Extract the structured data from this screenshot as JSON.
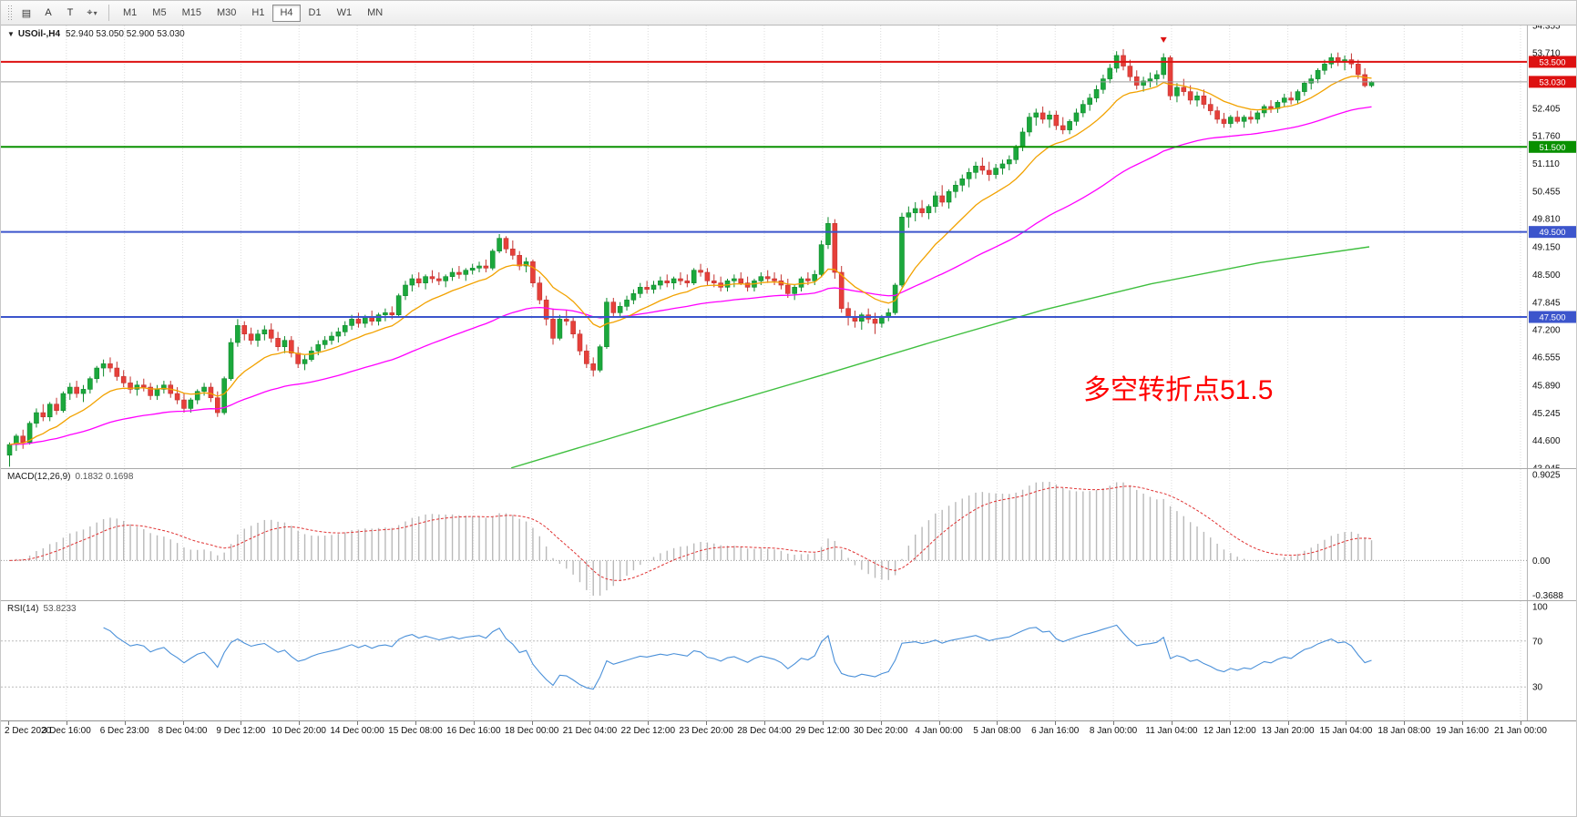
{
  "toolbar": {
    "icons": [
      {
        "name": "chart-layout-icon",
        "glyph": "▤"
      },
      {
        "name": "annotation-a-icon",
        "glyph": "A"
      },
      {
        "name": "text-tool-icon",
        "glyph": "T"
      },
      {
        "name": "crosshair-tool-icon",
        "glyph": "⌖"
      }
    ],
    "dropdown_caret": "▾",
    "timeframes": [
      "M1",
      "M5",
      "M15",
      "M30",
      "H1",
      "H4",
      "D1",
      "W1",
      "MN"
    ],
    "active_timeframe": "H4"
  },
  "chart": {
    "collapse_toggle": "▼",
    "symbol": "USOil-,H4",
    "ohlc_text": "52.940 53.050 52.900 53.030",
    "annotation": {
      "text": "多空转折点51.5",
      "color": "#ff0000"
    }
  },
  "chart_data": {
    "type": "candlestick",
    "title": "USOil-,H4",
    "price_axis": {
      "min": 43.945,
      "max": 54.355,
      "ticks": [
        "54.355",
        "53.710",
        "53.055",
        "52.405",
        "51.760",
        "51.110",
        "50.455",
        "49.810",
        "49.150",
        "48.500",
        "47.845",
        "47.200",
        "46.555",
        "45.890",
        "45.245",
        "44.600",
        "43.945"
      ]
    },
    "colors": {
      "up": "#1ba83c",
      "up_stroke": "#0f8a2d",
      "down": "#e6403a",
      "down_stroke": "#c33330"
    },
    "horizontal_lines": [
      {
        "value": 53.5,
        "label": "53.500",
        "color": "#dd1111"
      },
      {
        "value": 51.5,
        "label": "51.500",
        "color": "#089000"
      },
      {
        "value": 49.5,
        "label": "49.500",
        "color": "#3c55cc"
      },
      {
        "value": 47.5,
        "label": "47.500",
        "color": "#3c55cc"
      }
    ],
    "current_price": {
      "value": 53.03,
      "label": "53.030",
      "line_color": "#9b9b9b",
      "badge_color": "#dd1111"
    },
    "moving_averages": {
      "fast": {
        "period": 13,
        "color": "#f2a200"
      },
      "mid": {
        "period": 50,
        "color": "#ff00ff"
      },
      "long": {
        "color": "#3fbf3f",
        "points": [
          [
            0.37,
            43.95
          ],
          [
            0.44,
            44.62
          ],
          [
            0.52,
            45.4
          ],
          [
            0.6,
            46.15
          ],
          [
            0.68,
            46.92
          ],
          [
            0.76,
            47.66
          ],
          [
            0.84,
            48.28
          ],
          [
            0.92,
            48.78
          ],
          [
            1.0,
            49.15
          ]
        ]
      }
    },
    "sell_arrow": {
      "candle_index": 172,
      "price": 53.95,
      "color": "#dd1111"
    },
    "candles": [
      [
        44.25,
        44.55,
        43.98,
        44.5
      ],
      [
        44.5,
        44.75,
        44.35,
        44.7
      ],
      [
        44.7,
        44.85,
        44.4,
        44.55
      ],
      [
        44.55,
        45.05,
        44.5,
        45.0
      ],
      [
        45.0,
        45.35,
        44.9,
        45.25
      ],
      [
        45.25,
        45.45,
        45.05,
        45.15
      ],
      [
        45.15,
        45.5,
        45.05,
        45.45
      ],
      [
        45.45,
        45.6,
        45.2,
        45.3
      ],
      [
        45.3,
        45.75,
        45.25,
        45.7
      ],
      [
        45.7,
        45.95,
        45.55,
        45.85
      ],
      [
        45.85,
        46.0,
        45.6,
        45.7
      ],
      [
        45.7,
        45.9,
        45.5,
        45.8
      ],
      [
        45.8,
        46.1,
        45.7,
        46.05
      ],
      [
        46.05,
        46.35,
        45.95,
        46.3
      ],
      [
        46.3,
        46.5,
        46.1,
        46.4
      ],
      [
        46.4,
        46.55,
        46.2,
        46.3
      ],
      [
        46.3,
        46.45,
        46.0,
        46.1
      ],
      [
        46.1,
        46.25,
        45.85,
        45.95
      ],
      [
        45.95,
        46.1,
        45.7,
        45.8
      ],
      [
        45.8,
        46.0,
        45.65,
        45.9
      ],
      [
        45.9,
        46.05,
        45.75,
        45.85
      ],
      [
        45.85,
        45.95,
        45.55,
        45.65
      ],
      [
        45.65,
        45.9,
        45.55,
        45.8
      ],
      [
        45.8,
        46.0,
        45.7,
        45.9
      ],
      [
        45.9,
        46.0,
        45.6,
        45.7
      ],
      [
        45.7,
        45.85,
        45.45,
        45.55
      ],
      [
        45.55,
        45.7,
        45.25,
        45.35
      ],
      [
        45.35,
        45.6,
        45.25,
        45.55
      ],
      [
        45.55,
        45.8,
        45.45,
        45.75
      ],
      [
        45.75,
        45.95,
        45.65,
        45.85
      ],
      [
        45.85,
        45.95,
        45.5,
        45.6
      ],
      [
        45.6,
        45.75,
        45.15,
        45.25
      ],
      [
        45.25,
        46.1,
        45.2,
        46.05
      ],
      [
        46.05,
        47.0,
        46.0,
        46.9
      ],
      [
        46.9,
        47.45,
        46.8,
        47.3
      ],
      [
        47.3,
        47.4,
        46.95,
        47.1
      ],
      [
        47.1,
        47.25,
        46.85,
        46.95
      ],
      [
        46.95,
        47.2,
        46.8,
        47.1
      ],
      [
        47.1,
        47.3,
        46.95,
        47.2
      ],
      [
        47.2,
        47.35,
        46.9,
        47.0
      ],
      [
        47.0,
        47.15,
        46.7,
        46.8
      ],
      [
        46.8,
        47.05,
        46.65,
        46.95
      ],
      [
        46.95,
        47.05,
        46.55,
        46.65
      ],
      [
        46.65,
        46.8,
        46.3,
        46.4
      ],
      [
        46.4,
        46.6,
        46.25,
        46.5
      ],
      [
        46.5,
        46.8,
        46.45,
        46.7
      ],
      [
        46.7,
        46.95,
        46.6,
        46.85
      ],
      [
        46.85,
        47.05,
        46.75,
        46.95
      ],
      [
        46.95,
        47.15,
        46.85,
        47.05
      ],
      [
        47.05,
        47.25,
        46.9,
        47.15
      ],
      [
        47.15,
        47.4,
        47.05,
        47.3
      ],
      [
        47.3,
        47.55,
        47.2,
        47.45
      ],
      [
        47.45,
        47.6,
        47.25,
        47.35
      ],
      [
        47.35,
        47.55,
        47.25,
        47.5
      ],
      [
        47.5,
        47.65,
        47.3,
        47.4
      ],
      [
        47.4,
        47.6,
        47.3,
        47.55
      ],
      [
        47.55,
        47.7,
        47.4,
        47.6
      ],
      [
        47.6,
        47.75,
        47.45,
        47.55
      ],
      [
        47.55,
        48.05,
        47.5,
        48.0
      ],
      [
        48.0,
        48.35,
        47.9,
        48.25
      ],
      [
        48.25,
        48.5,
        48.1,
        48.4
      ],
      [
        48.4,
        48.55,
        48.2,
        48.3
      ],
      [
        48.3,
        48.5,
        48.15,
        48.45
      ],
      [
        48.45,
        48.6,
        48.3,
        48.4
      ],
      [
        48.4,
        48.55,
        48.25,
        48.35
      ],
      [
        48.35,
        48.5,
        48.2,
        48.45
      ],
      [
        48.45,
        48.65,
        48.35,
        48.55
      ],
      [
        48.55,
        48.7,
        48.4,
        48.5
      ],
      [
        48.5,
        48.65,
        48.35,
        48.6
      ],
      [
        48.6,
        48.75,
        48.5,
        48.65
      ],
      [
        48.65,
        48.8,
        48.55,
        48.7
      ],
      [
        48.7,
        48.85,
        48.55,
        48.65
      ],
      [
        48.65,
        49.1,
        48.6,
        49.05
      ],
      [
        49.05,
        49.45,
        49.0,
        49.35
      ],
      [
        49.35,
        49.4,
        49.0,
        49.1
      ],
      [
        49.1,
        49.3,
        48.85,
        48.95
      ],
      [
        48.95,
        49.05,
        48.6,
        48.7
      ],
      [
        48.7,
        48.9,
        48.55,
        48.8
      ],
      [
        48.8,
        48.85,
        48.2,
        48.3
      ],
      [
        48.3,
        48.45,
        47.8,
        47.9
      ],
      [
        47.9,
        48.0,
        47.3,
        47.45
      ],
      [
        47.45,
        47.7,
        46.85,
        47.0
      ],
      [
        47.0,
        47.55,
        46.95,
        47.45
      ],
      [
        47.45,
        47.65,
        47.3,
        47.4
      ],
      [
        47.4,
        47.5,
        47.0,
        47.1
      ],
      [
        47.1,
        47.2,
        46.6,
        46.7
      ],
      [
        46.7,
        46.85,
        46.3,
        46.4
      ],
      [
        46.4,
        46.55,
        46.1,
        46.25
      ],
      [
        46.25,
        46.85,
        46.2,
        46.8
      ],
      [
        46.8,
        47.95,
        46.75,
        47.85
      ],
      [
        47.85,
        47.95,
        47.5,
        47.6
      ],
      [
        47.6,
        47.85,
        47.5,
        47.75
      ],
      [
        47.75,
        48.0,
        47.65,
        47.9
      ],
      [
        47.9,
        48.15,
        47.8,
        48.05
      ],
      [
        48.05,
        48.3,
        47.95,
        48.2
      ],
      [
        48.2,
        48.35,
        48.05,
        48.15
      ],
      [
        48.15,
        48.35,
        48.05,
        48.25
      ],
      [
        48.25,
        48.45,
        48.15,
        48.35
      ],
      [
        48.35,
        48.5,
        48.2,
        48.3
      ],
      [
        48.3,
        48.45,
        48.15,
        48.4
      ],
      [
        48.4,
        48.55,
        48.25,
        48.35
      ],
      [
        48.35,
        48.5,
        48.2,
        48.3
      ],
      [
        48.3,
        48.65,
        48.25,
        48.6
      ],
      [
        48.6,
        48.75,
        48.45,
        48.55
      ],
      [
        48.55,
        48.65,
        48.25,
        48.35
      ],
      [
        48.35,
        48.5,
        48.2,
        48.3
      ],
      [
        48.3,
        48.45,
        48.1,
        48.2
      ],
      [
        48.2,
        48.4,
        48.1,
        48.35
      ],
      [
        48.35,
        48.5,
        48.2,
        48.4
      ],
      [
        48.4,
        48.55,
        48.25,
        48.3
      ],
      [
        48.3,
        48.45,
        48.1,
        48.2
      ],
      [
        48.2,
        48.4,
        48.1,
        48.35
      ],
      [
        48.35,
        48.55,
        48.25,
        48.45
      ],
      [
        48.45,
        48.6,
        48.3,
        48.4
      ],
      [
        48.4,
        48.55,
        48.25,
        48.35
      ],
      [
        48.35,
        48.5,
        48.15,
        48.25
      ],
      [
        48.25,
        48.4,
        47.95,
        48.05
      ],
      [
        48.05,
        48.25,
        47.9,
        48.2
      ],
      [
        48.2,
        48.45,
        48.1,
        48.4
      ],
      [
        48.4,
        48.55,
        48.25,
        48.35
      ],
      [
        48.35,
        48.6,
        48.25,
        48.5
      ],
      [
        48.5,
        49.3,
        48.45,
        49.2
      ],
      [
        49.2,
        49.85,
        49.1,
        49.7
      ],
      [
        49.7,
        49.8,
        48.4,
        48.55
      ],
      [
        48.55,
        48.7,
        47.6,
        47.7
      ],
      [
        47.7,
        47.85,
        47.3,
        47.5
      ],
      [
        47.5,
        47.65,
        47.25,
        47.4
      ],
      [
        47.4,
        47.6,
        47.2,
        47.55
      ],
      [
        47.55,
        47.7,
        47.35,
        47.45
      ],
      [
        47.45,
        47.6,
        47.1,
        47.35
      ],
      [
        47.35,
        47.55,
        47.25,
        47.5
      ],
      [
        47.5,
        47.7,
        47.4,
        47.6
      ],
      [
        47.6,
        48.3,
        47.55,
        48.25
      ],
      [
        48.25,
        49.95,
        48.2,
        49.85
      ],
      [
        49.85,
        50.1,
        49.6,
        49.95
      ],
      [
        49.95,
        50.2,
        49.75,
        50.05
      ],
      [
        50.05,
        50.25,
        49.85,
        49.95
      ],
      [
        49.95,
        50.15,
        49.8,
        50.1
      ],
      [
        50.1,
        50.45,
        49.95,
        50.35
      ],
      [
        50.35,
        50.6,
        50.1,
        50.2
      ],
      [
        50.2,
        50.5,
        50.05,
        50.45
      ],
      [
        50.45,
        50.7,
        50.3,
        50.6
      ],
      [
        50.6,
        50.85,
        50.45,
        50.75
      ],
      [
        50.75,
        51.0,
        50.55,
        50.9
      ],
      [
        50.9,
        51.15,
        50.75,
        51.05
      ],
      [
        51.05,
        51.25,
        50.85,
        50.95
      ],
      [
        50.95,
        51.15,
        50.7,
        50.85
      ],
      [
        50.85,
        51.1,
        50.75,
        51.0
      ],
      [
        51.0,
        51.2,
        50.85,
        51.1
      ],
      [
        51.1,
        51.3,
        50.95,
        51.2
      ],
      [
        51.2,
        51.55,
        51.1,
        51.5
      ],
      [
        51.5,
        51.95,
        51.4,
        51.85
      ],
      [
        51.85,
        52.3,
        51.75,
        52.2
      ],
      [
        52.2,
        52.4,
        52.0,
        52.3
      ],
      [
        52.3,
        52.45,
        52.05,
        52.15
      ],
      [
        52.15,
        52.35,
        51.95,
        52.25
      ],
      [
        52.25,
        52.35,
        51.9,
        52.0
      ],
      [
        52.0,
        52.2,
        51.8,
        51.9
      ],
      [
        51.9,
        52.15,
        51.8,
        52.1
      ],
      [
        52.1,
        52.4,
        52.0,
        52.3
      ],
      [
        52.3,
        52.6,
        52.2,
        52.5
      ],
      [
        52.5,
        52.75,
        52.35,
        52.65
      ],
      [
        52.65,
        52.95,
        52.55,
        52.85
      ],
      [
        52.85,
        53.2,
        52.75,
        53.1
      ],
      [
        53.1,
        53.45,
        53.0,
        53.35
      ],
      [
        53.35,
        53.75,
        53.25,
        53.65
      ],
      [
        53.65,
        53.8,
        53.3,
        53.4
      ],
      [
        53.4,
        53.55,
        53.05,
        53.15
      ],
      [
        53.15,
        53.3,
        52.85,
        52.95
      ],
      [
        52.95,
        53.15,
        52.8,
        53.05
      ],
      [
        53.05,
        53.25,
        52.9,
        53.1
      ],
      [
        53.1,
        53.3,
        52.95,
        53.2
      ],
      [
        53.2,
        53.7,
        53.1,
        53.6
      ],
      [
        53.6,
        53.65,
        52.6,
        52.7
      ],
      [
        52.7,
        53.0,
        52.55,
        52.9
      ],
      [
        52.9,
        53.1,
        52.7,
        52.8
      ],
      [
        52.8,
        52.95,
        52.5,
        52.6
      ],
      [
        52.6,
        52.8,
        52.45,
        52.7
      ],
      [
        52.7,
        52.85,
        52.4,
        52.5
      ],
      [
        52.5,
        52.65,
        52.25,
        52.35
      ],
      [
        52.35,
        52.45,
        52.05,
        52.15
      ],
      [
        52.15,
        52.3,
        51.95,
        52.05
      ],
      [
        52.05,
        52.25,
        51.95,
        52.2
      ],
      [
        52.2,
        52.35,
        52.05,
        52.1
      ],
      [
        52.1,
        52.25,
        51.95,
        52.2
      ],
      [
        52.2,
        52.35,
        52.05,
        52.15
      ],
      [
        52.15,
        52.35,
        52.05,
        52.3
      ],
      [
        52.3,
        52.5,
        52.2,
        52.45
      ],
      [
        52.45,
        52.6,
        52.3,
        52.4
      ],
      [
        52.4,
        52.6,
        52.3,
        52.55
      ],
      [
        52.55,
        52.75,
        52.45,
        52.65
      ],
      [
        52.65,
        52.8,
        52.5,
        52.6
      ],
      [
        52.6,
        52.85,
        52.5,
        52.8
      ],
      [
        52.8,
        53.05,
        52.7,
        53.0
      ],
      [
        53.0,
        53.2,
        52.85,
        53.1
      ],
      [
        53.1,
        53.35,
        53.0,
        53.3
      ],
      [
        53.3,
        53.55,
        53.2,
        53.45
      ],
      [
        53.45,
        53.7,
        53.35,
        53.6
      ],
      [
        53.6,
        53.72,
        53.4,
        53.5
      ],
      [
        53.5,
        53.65,
        53.3,
        53.55
      ],
      [
        53.55,
        53.7,
        53.35,
        53.45
      ],
      [
        53.45,
        53.55,
        53.1,
        53.2
      ],
      [
        53.2,
        53.35,
        52.9,
        52.94
      ],
      [
        52.94,
        53.05,
        52.9,
        53.03
      ]
    ]
  },
  "macd": {
    "name": "MACD(12,26,9)",
    "values": "0.1832 0.1698",
    "fast": 12,
    "slow": 26,
    "signal": 9,
    "axis_max": 0.9025,
    "axis_min": -0.3688,
    "axis_ticks": [
      "0.9025",
      "0.00",
      "-0.3688"
    ],
    "histogram_color": "#b9b9b9",
    "signal_color": "#e03232"
  },
  "rsi": {
    "name": "RSI(14)",
    "value": "53.8233",
    "period": 14,
    "levels": [
      100,
      70,
      30
    ],
    "line_color": "#4a90d9"
  },
  "time_axis": {
    "labels": [
      "2 Dec 2020",
      "3 Dec 16:00",
      "6 Dec 23:00",
      "8 Dec 04:00",
      "9 Dec 12:00",
      "10 Dec 20:00",
      "14 Dec 00:00",
      "15 Dec 08:00",
      "16 Dec 16:00",
      "18 Dec 00:00",
      "21 Dec 04:00",
      "22 Dec 12:00",
      "23 Dec 20:00",
      "28 Dec 04:00",
      "29 Dec 12:00",
      "30 Dec 20:00",
      "4 Jan 00:00",
      "5 Jan 08:00",
      "6 Jan 16:00",
      "8 Jan 00:00",
      "11 Jan 04:00",
      "12 Jan 12:00",
      "13 Jan 20:00",
      "15 Jan 04:00",
      "18 Jan 08:00",
      "19 Jan 16:00",
      "21 Jan 00:00"
    ]
  }
}
